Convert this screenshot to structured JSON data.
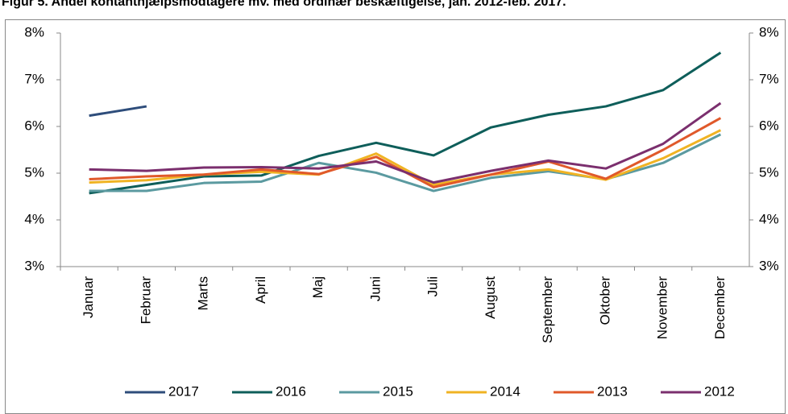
{
  "chart_data": {
    "type": "line",
    "title": "Figur 5. Andel kontanthjælpsmodtagere mv. med ordinær beskæftigelse, jan. 2012-feb. 2017.",
    "categories": [
      "Januar",
      "Februar",
      "Marts",
      "April",
      "Maj",
      "Juni",
      "Juli",
      "August",
      "September",
      "Oktober",
      "November",
      "December"
    ],
    "series": [
      {
        "name": "2017",
        "color": "#2e4d7b",
        "values": [
          6.23,
          6.43,
          null,
          null,
          null,
          null,
          null,
          null,
          null,
          null,
          null,
          null
        ]
      },
      {
        "name": "2016",
        "color": "#0e5e5a",
        "values": [
          4.57,
          4.75,
          4.93,
          4.95,
          5.37,
          5.65,
          5.38,
          5.98,
          6.25,
          6.43,
          6.78,
          7.58
        ]
      },
      {
        "name": "2015",
        "color": "#5b9aa0",
        "values": [
          4.62,
          4.62,
          4.79,
          4.82,
          5.22,
          5.01,
          4.62,
          4.9,
          5.04,
          4.87,
          5.22,
          5.83
        ]
      },
      {
        "name": "2014",
        "color": "#f0b323",
        "values": [
          4.8,
          4.85,
          4.97,
          5.03,
          4.97,
          5.42,
          4.75,
          4.97,
          5.08,
          4.86,
          5.32,
          5.92
        ]
      },
      {
        "name": "2013",
        "color": "#e0592a",
        "values": [
          4.87,
          4.93,
          4.97,
          5.08,
          4.98,
          5.35,
          4.7,
          4.97,
          5.25,
          4.88,
          5.5,
          6.18
        ]
      },
      {
        "name": "2012",
        "color": "#7b2f6e",
        "values": [
          5.08,
          5.05,
          5.12,
          5.13,
          5.1,
          5.25,
          4.8,
          5.05,
          5.27,
          5.1,
          5.63,
          6.5
        ]
      }
    ],
    "ylim": [
      3,
      8
    ],
    "yticks": [
      {
        "value": 3,
        "label": "3%"
      },
      {
        "value": 4,
        "label": "4%"
      },
      {
        "value": 5,
        "label": "5%"
      },
      {
        "value": 6,
        "label": "6%"
      },
      {
        "value": 7,
        "label": "7%"
      },
      {
        "value": 8,
        "label": "8%"
      }
    ],
    "y2lim": [
      3,
      8
    ],
    "y2ticks": [
      {
        "value": 3,
        "label": "3%"
      },
      {
        "value": 4,
        "label": "4%"
      },
      {
        "value": 5,
        "label": "5%"
      },
      {
        "value": 6,
        "label": "6%"
      },
      {
        "value": 7,
        "label": "7%"
      },
      {
        "value": 8,
        "label": "8%"
      }
    ],
    "legend": "bottom"
  }
}
